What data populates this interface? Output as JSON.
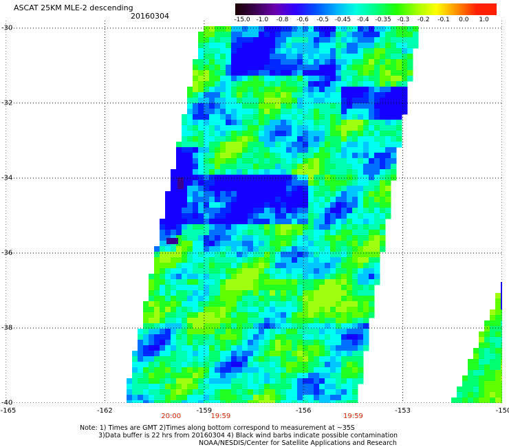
{
  "header": {
    "title": "ASCAT 25KM MLE-2 descending",
    "date": "20160304"
  },
  "colorbar": {
    "labels": [
      "-15.0",
      "-1.0",
      "-0.8",
      "-0.6",
      "-0.5",
      "-0.45",
      "-0.4",
      "-0.35",
      "-0.3",
      "-0.2",
      "-0.1",
      "0.0",
      "1.0"
    ],
    "colors": [
      "#1a0000",
      "#3a0050",
      "#6a00b0",
      "#3000ff",
      "#0050ff",
      "#00b0ff",
      "#00ffe0",
      "#00ff80",
      "#20ff00",
      "#a0ff00",
      "#ffff00",
      "#ff9000",
      "#ff2000"
    ]
  },
  "map": {
    "lat_labels": [
      "-30",
      "-32",
      "-34",
      "-36",
      "-38",
      "-40"
    ],
    "lat_values": [
      -30,
      -32,
      -34,
      -36,
      -38,
      -40
    ],
    "lon_labels": [
      "-165",
      "-162",
      "-159",
      "-156",
      "-153",
      "-150"
    ],
    "lon_values": [
      -165,
      -162,
      -159,
      -156,
      -153,
      -150
    ],
    "lat_range": [
      -40,
      -29.8
    ],
    "lon_range": [
      -165,
      -150
    ],
    "time_labels": [
      {
        "text": "20:00",
        "lon": -160
      },
      {
        "text": "19:59",
        "lon": -158.5
      },
      {
        "text": "19:59",
        "lon": -154.5
      }
    ]
  },
  "footer": {
    "line1": "Note: 1) Times are GMT 2)Times along bottom correspond to measurement at ~35S",
    "line2": "3)Data buffer is 22 hrs from 20160304 4) Black wind barbs indicate possible contamination",
    "line3": "NOAA/NESDIS/Center for Satellite Applications and Research"
  }
}
